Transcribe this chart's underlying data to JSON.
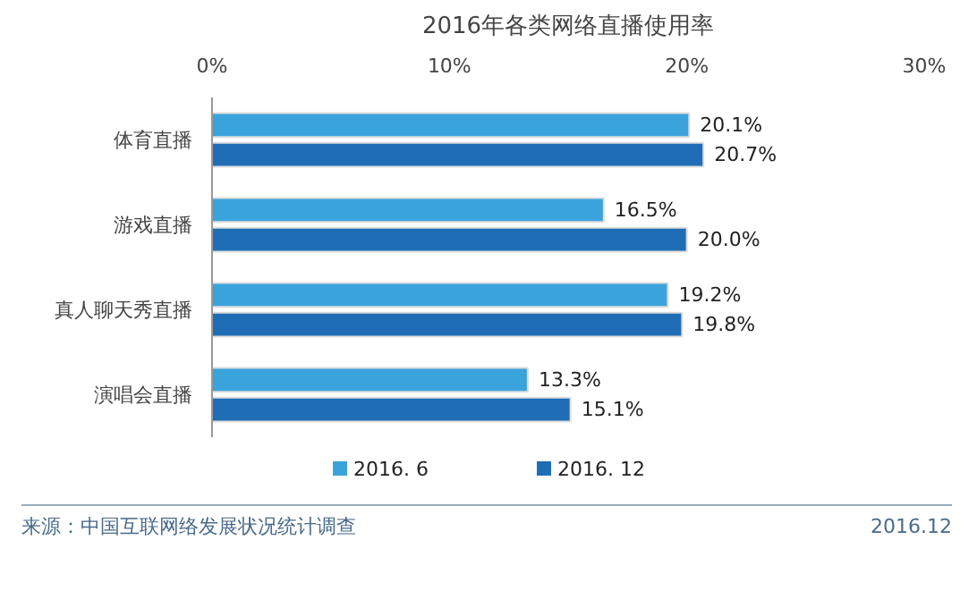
{
  "chart_data": {
    "type": "bar",
    "orientation": "horizontal",
    "title": "2016年各类网络直播使用率",
    "categories": [
      "体育直播",
      "游戏直播",
      "真人聊天秀直播",
      "演唱会直播"
    ],
    "series": [
      {
        "name": "2016. 6",
        "color": "#3ba3dc",
        "values": [
          20.1,
          16.5,
          19.2,
          13.3
        ],
        "value_labels": [
          "20.1%",
          "16.5%",
          "19.2%",
          "13.3%"
        ]
      },
      {
        "name": "2016. 12",
        "color": "#1f6db4",
        "values": [
          20.7,
          20.0,
          19.8,
          15.1
        ],
        "value_labels": [
          "20.7%",
          "20.0%",
          "19.8%",
          "15.1%"
        ]
      }
    ],
    "xlim": [
      0,
      30
    ],
    "xticks": [
      {
        "value": 0,
        "label": "0%"
      },
      {
        "value": 10,
        "label": "10%"
      },
      {
        "value": 20,
        "label": "20%"
      },
      {
        "value": 30,
        "label": "30%"
      }
    ],
    "grid": false,
    "legend": "bottom",
    "annotations": [
      "来源：中国互联网络发展状况统计调查",
      "2016.12"
    ]
  }
}
